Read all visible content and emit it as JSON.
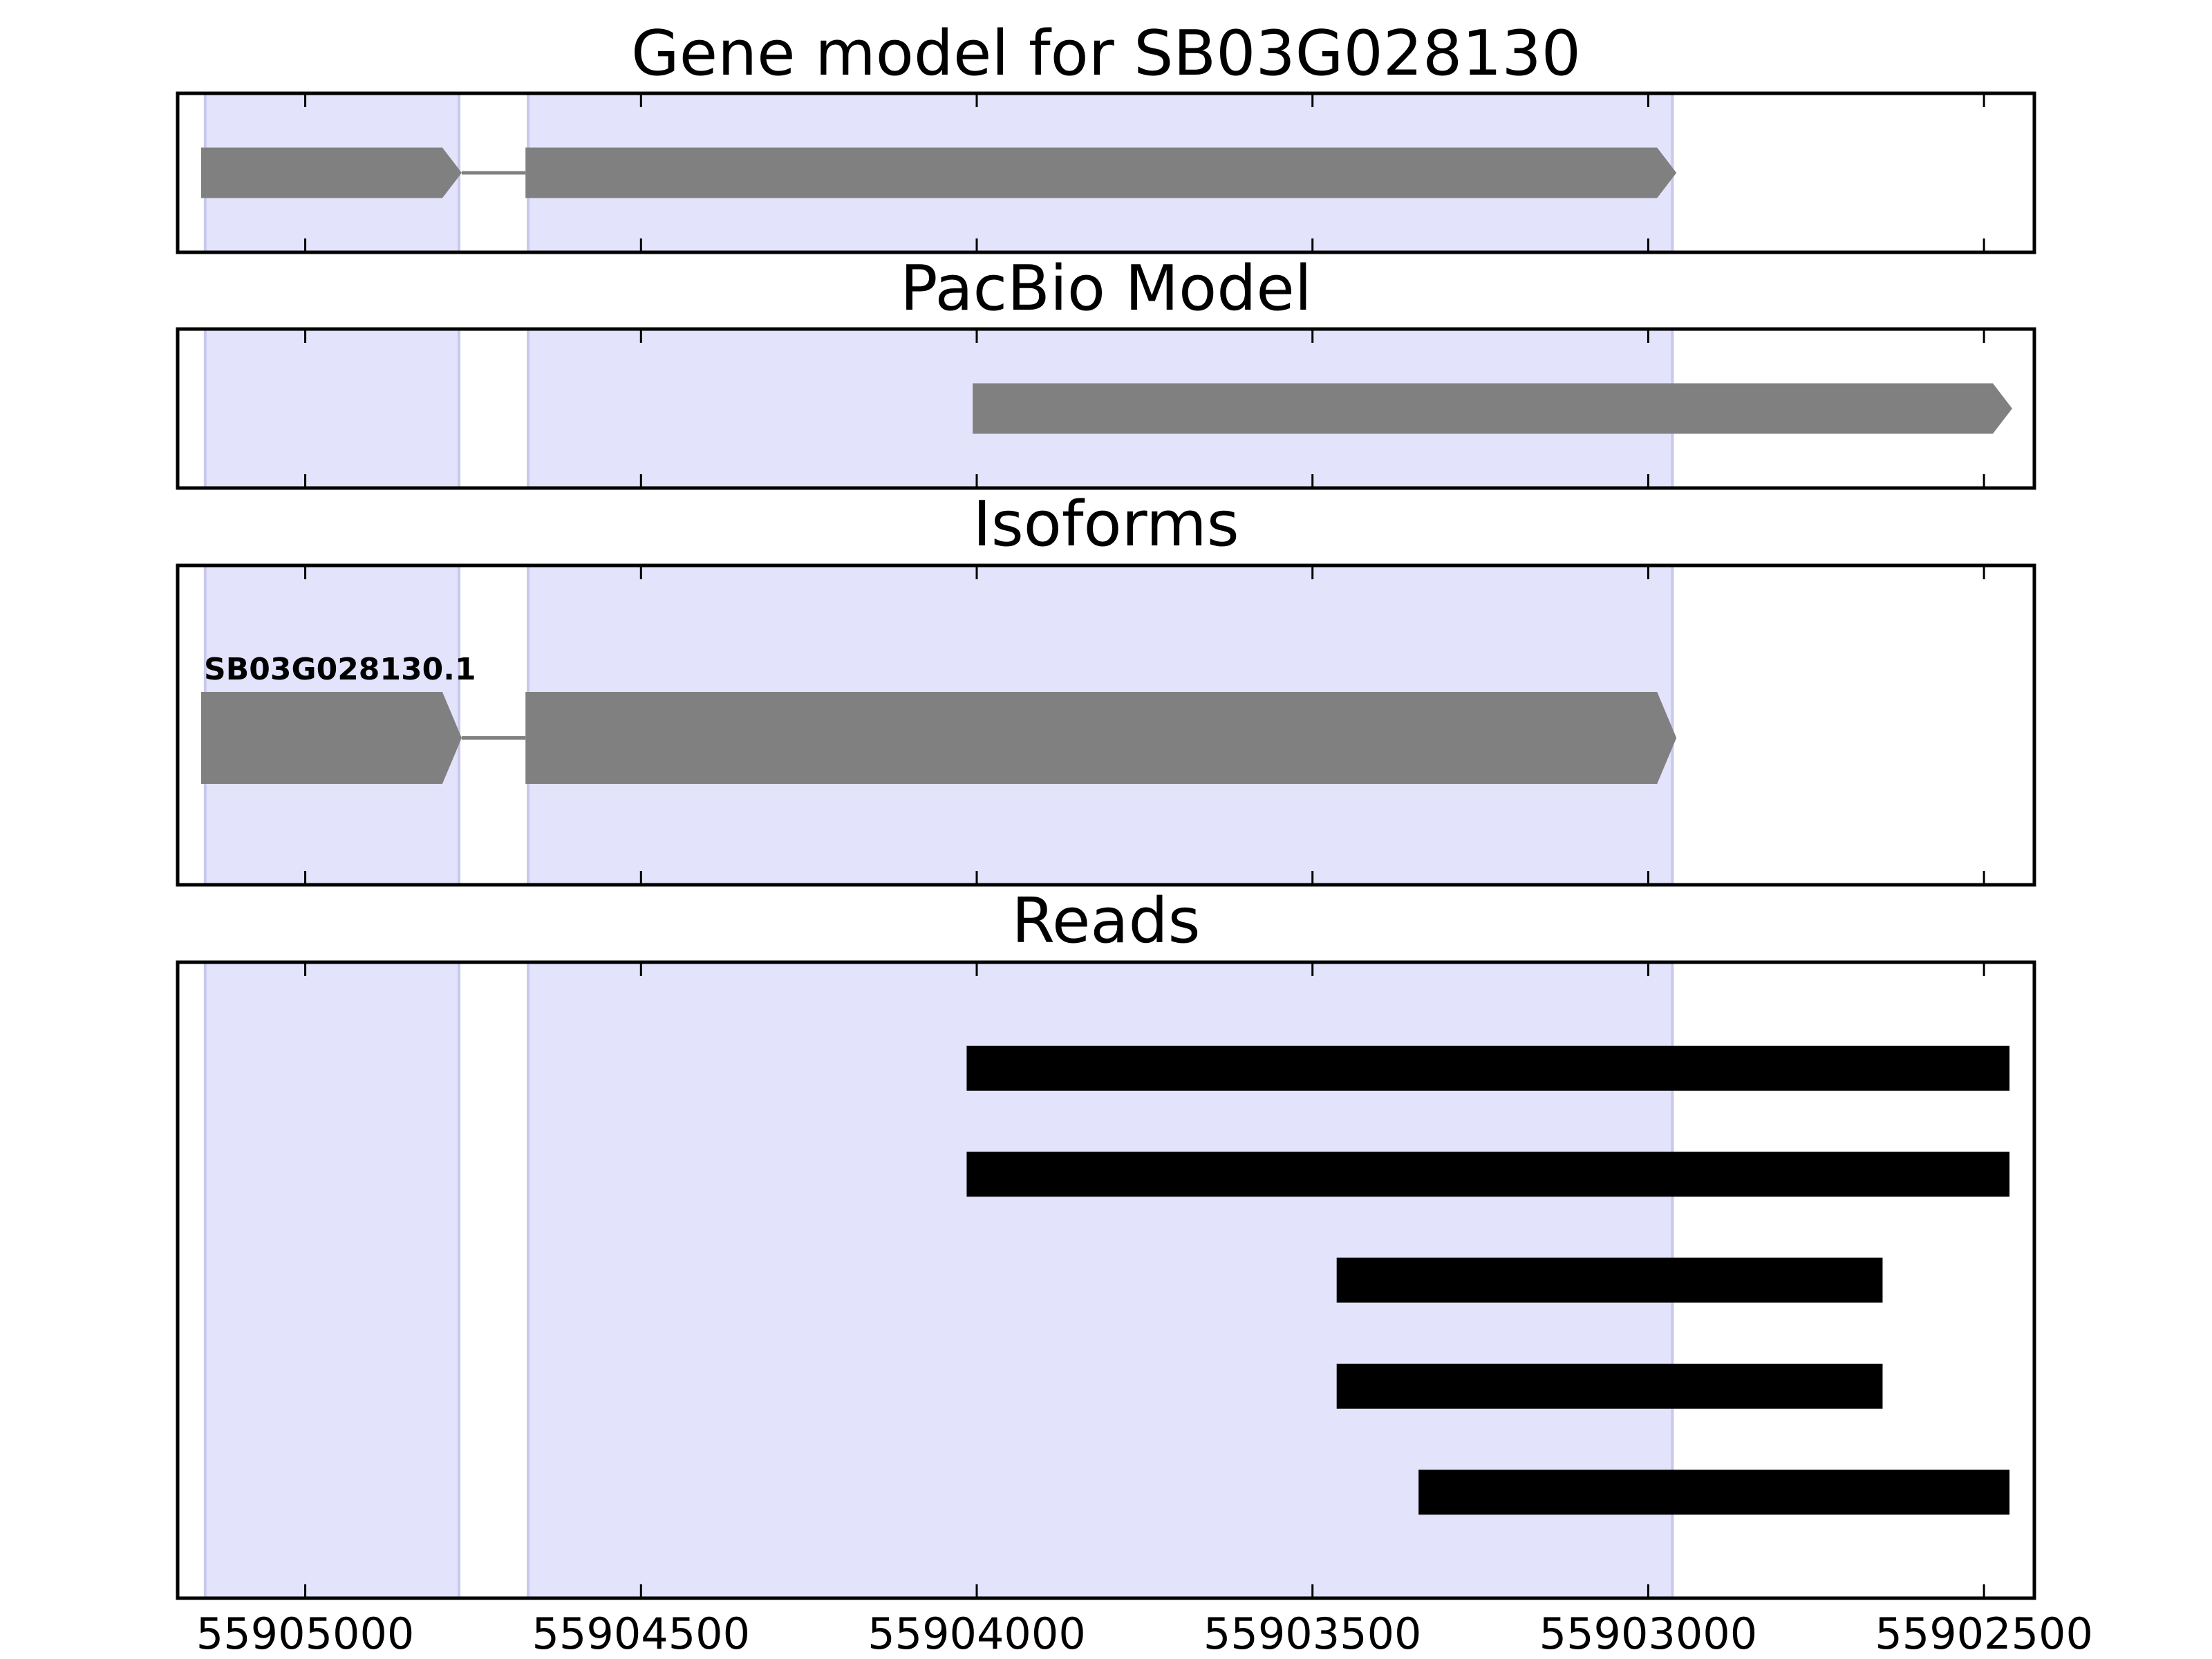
{
  "chart_data": [
    {
      "type": "gene",
      "title": "Gene model for SB03G028130",
      "xlim": [
        55905190,
        55902425
      ],
      "xticks": [
        55905000,
        55904500,
        55904000,
        55903500,
        55903000,
        55902500
      ],
      "highlights": [
        [
          55905149,
          55904771
        ],
        [
          55904668,
          55902964
        ]
      ],
      "highlight_color": "#e3e3fc",
      "color": "#808080",
      "transcripts": [
        {
          "exons": [
            [
              55905155,
              55904767
            ],
            [
              55904672,
              55902958
            ]
          ]
        }
      ]
    },
    {
      "type": "gene",
      "title": "PacBio Model",
      "xlim": [
        55905190,
        55902425
      ],
      "xticks": [
        55905000,
        55904500,
        55904000,
        55903500,
        55903000,
        55902500
      ],
      "highlights": [
        [
          55905149,
          55904771
        ],
        [
          55904668,
          55902964
        ]
      ],
      "highlight_color": "#e3e3fc",
      "color": "#808080",
      "transcripts": [
        {
          "exons": [
            [
              55904006,
              55902458
            ]
          ]
        }
      ]
    },
    {
      "type": "gene",
      "title": "Isoforms",
      "xlim": [
        55905190,
        55902425
      ],
      "xticks": [
        55905000,
        55904500,
        55904000,
        55903500,
        55903000,
        55902500
      ],
      "highlights": [
        [
          55905149,
          55904771
        ],
        [
          55904668,
          55902964
        ]
      ],
      "highlight_color": "#e3e3fc",
      "color": "#808080",
      "transcripts": [
        {
          "name": "SB03G028130.1",
          "exons": [
            [
              55905155,
              55904767
            ],
            [
              55904672,
              55902958
            ]
          ]
        }
      ]
    },
    {
      "type": "reads",
      "title": "Reads",
      "xlim": [
        55905190,
        55902425
      ],
      "xticks": [
        55905000,
        55904500,
        55904000,
        55903500,
        55903000,
        55902500
      ],
      "highlights": [
        [
          55905149,
          55904771
        ],
        [
          55904668,
          55902964
        ]
      ],
      "highlight_color": "#e3e3fc",
      "color": "#000000",
      "reads": [
        [
          55904015,
          55902462
        ],
        [
          55904015,
          55902462
        ],
        [
          55903464,
          55902651
        ],
        [
          55903464,
          55902651
        ],
        [
          55903342,
          55902462
        ]
      ]
    }
  ]
}
